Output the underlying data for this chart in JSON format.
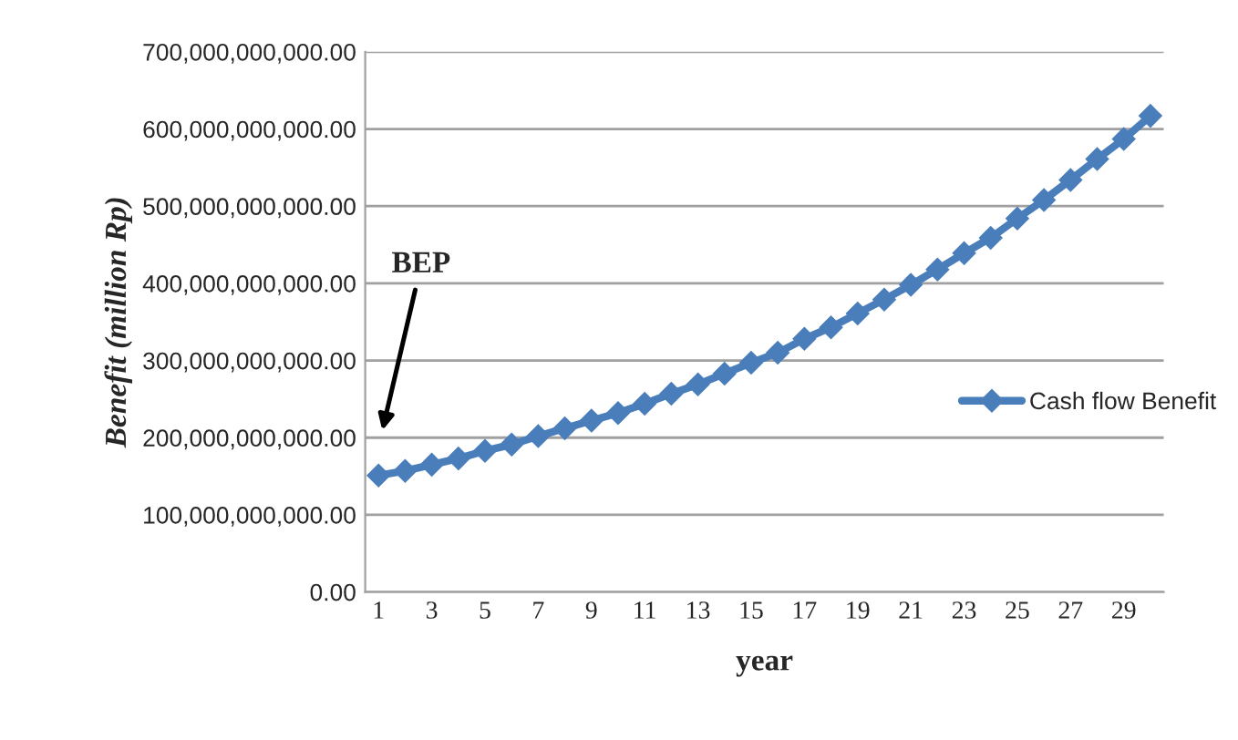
{
  "chart_data": {
    "type": "line",
    "xlabel": "year",
    "ylabel": "Benefit (million Rp)",
    "categories": [
      "1",
      null,
      "3",
      null,
      "5",
      null,
      "7",
      null,
      "9",
      null,
      "11",
      null,
      "13",
      null,
      "15",
      null,
      "17",
      null,
      "19",
      null,
      "21",
      null,
      "23",
      null,
      "25",
      null,
      "27",
      null,
      "29",
      null
    ],
    "series": [
      {
        "name": "Cash flow Benefit",
        "color": "#4a7ebb",
        "values": [
          151000000000.0,
          157000000000.0,
          165000000000.0,
          173000000000.0,
          183000000000.0,
          191000000000.0,
          202000000000.0,
          212000000000.0,
          222000000000.0,
          232000000000.0,
          244000000000.0,
          257000000000.0,
          269000000000.0,
          283000000000.0,
          297000000000.0,
          310000000000.0,
          328000000000.0,
          343000000000.0,
          361000000000.0,
          379000000000.0,
          398000000000.0,
          418000000000.0,
          439000000000.0,
          459000000000.0,
          484000000000.0,
          508000000000.0,
          534000000000.0,
          561000000000.0,
          587000000000.0,
          617000000000.0
        ]
      }
    ],
    "ylim": [
      0,
      700000000000.0
    ],
    "yticks": [
      {
        "value": 0,
        "label": "0.00"
      },
      {
        "value": 100000000000.0,
        "label": "100,000,000,000.00"
      },
      {
        "value": 200000000000.0,
        "label": "200,000,000,000.00"
      },
      {
        "value": 300000000000.0,
        "label": "300,000,000,000.00"
      },
      {
        "value": 400000000000.0,
        "label": "400,000,000,000.00"
      },
      {
        "value": 500000000000.0,
        "label": "500,000,000,000.00"
      },
      {
        "value": 600000000000.0,
        "label": "600,000,000,000.00"
      },
      {
        "value": 700000000000.0,
        "label": "700,000,000,000.00"
      }
    ],
    "annotations": [
      "BEP"
    ],
    "grid": "y",
    "legend": "right",
    "marker": "diamond",
    "line_style": "solid"
  }
}
